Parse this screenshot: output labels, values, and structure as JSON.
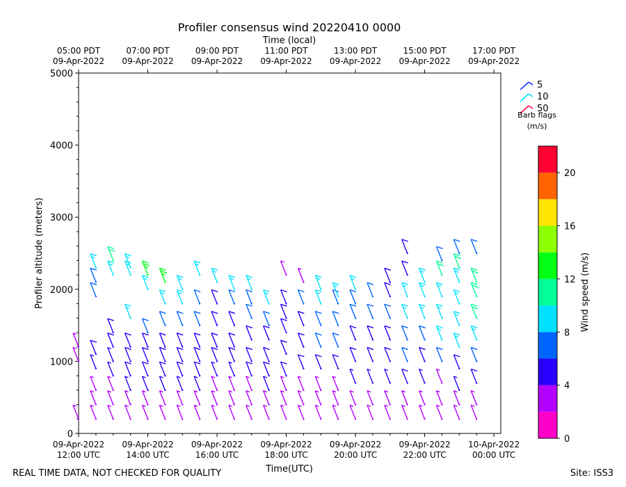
{
  "chart_data": {
    "type": "wind-barb profile",
    "title": "Profiler consensus wind 20220410 0000",
    "top_axis_label": "Time (local)",
    "xlabel": "Time(UTC)",
    "ylabel": "Profiler altitude (meters)",
    "ylim": [
      0,
      5000
    ],
    "y_ticks": [
      0,
      1000,
      2000,
      3000,
      4000,
      5000
    ],
    "xlim_hours_utc": [
      12.0,
      24.2
    ],
    "x_ticks_utc": [
      {
        "hour": 12,
        "line1": "09-Apr-2022",
        "line2": "12:00 UTC"
      },
      {
        "hour": 14,
        "line1": "09-Apr-2022",
        "line2": "14:00 UTC"
      },
      {
        "hour": 16,
        "line1": "09-Apr-2022",
        "line2": "16:00 UTC"
      },
      {
        "hour": 18,
        "line1": "09-Apr-2022",
        "line2": "18:00 UTC"
      },
      {
        "hour": 20,
        "line1": "09-Apr-2022",
        "line2": "20:00 UTC"
      },
      {
        "hour": 22,
        "line1": "09-Apr-2022",
        "line2": "22:00 UTC"
      },
      {
        "hour": 24,
        "line1": "10-Apr-2022",
        "line2": "00:00 UTC"
      }
    ],
    "x_ticks_local": [
      {
        "hour": 12,
        "line1": "05:00 PDT",
        "line2": "09-Apr-2022"
      },
      {
        "hour": 14,
        "line1": "07:00 PDT",
        "line2": "09-Apr-2022"
      },
      {
        "hour": 16,
        "line1": "09:00 PDT",
        "line2": "09-Apr-2022"
      },
      {
        "hour": 18,
        "line1": "11:00 PDT",
        "line2": "09-Apr-2022"
      },
      {
        "hour": 20,
        "line1": "13:00 PDT",
        "line2": "09-Apr-2022"
      },
      {
        "hour": 22,
        "line1": "15:00 PDT",
        "line2": "09-Apr-2022"
      },
      {
        "hour": 24,
        "line1": "17:00 PDT",
        "line2": "09-Apr-2022"
      }
    ],
    "legend": {
      "entries": [
        {
          "label": "5",
          "color": "#1a33ff"
        },
        {
          "label": "10",
          "color": "#00e5ff"
        },
        {
          "label": "50",
          "color": "#ff0040"
        }
      ],
      "title_line1": "Barb flags",
      "title_line2": "(m/s)"
    },
    "colorbar": {
      "label": "Wind speed (m/s)",
      "min": 0,
      "max": 22,
      "bins": [
        {
          "from": 0,
          "to": 2,
          "color": "#ff00c8"
        },
        {
          "from": 2,
          "to": 4,
          "color": "#b400ff"
        },
        {
          "from": 4,
          "to": 6,
          "color": "#2800ff"
        },
        {
          "from": 6,
          "to": 8,
          "color": "#0064ff"
        },
        {
          "from": 8,
          "to": 10,
          "color": "#00e1ff"
        },
        {
          "from": 10,
          "to": 12,
          "color": "#00ff96"
        },
        {
          "from": 12,
          "to": 14,
          "color": "#00ff14"
        },
        {
          "from": 14,
          "to": 16,
          "color": "#8cff00"
        },
        {
          "from": 16,
          "to": 18,
          "color": "#ffe600"
        },
        {
          "from": 18,
          "to": 20,
          "color": "#ff6400"
        },
        {
          "from": 20,
          "to": 22,
          "color": "#ff0032"
        }
      ],
      "ticks": [
        0,
        4,
        8,
        12,
        16,
        20
      ]
    },
    "profiles": [
      {
        "hour": 12.0,
        "levels": [
          [
            200,
            2
          ],
          [
            1000,
            3
          ],
          [
            1200,
            3
          ]
        ]
      },
      {
        "hour": 12.5,
        "levels": [
          [
            200,
            2
          ],
          [
            400,
            2
          ],
          [
            600,
            3
          ],
          [
            900,
            4
          ],
          [
            1100,
            5
          ],
          [
            1900,
            6
          ],
          [
            2100,
            6
          ],
          [
            2300,
            8
          ]
        ]
      },
      {
        "hour": 13.0,
        "levels": [
          [
            200,
            2
          ],
          [
            400,
            2
          ],
          [
            600,
            3
          ],
          [
            800,
            4
          ],
          [
            1000,
            4
          ],
          [
            1200,
            5
          ],
          [
            1400,
            5
          ],
          [
            2200,
            8
          ],
          [
            2400,
            10
          ]
        ]
      },
      {
        "hour": 13.5,
        "levels": [
          [
            200,
            2
          ],
          [
            400,
            2
          ],
          [
            600,
            4
          ],
          [
            800,
            5
          ],
          [
            1000,
            5
          ],
          [
            1200,
            5
          ],
          [
            1600,
            8
          ],
          [
            2200,
            8
          ],
          [
            2300,
            9
          ]
        ]
      },
      {
        "hour": 14.0,
        "levels": [
          [
            200,
            2
          ],
          [
            400,
            2
          ],
          [
            600,
            4
          ],
          [
            800,
            5
          ],
          [
            1000,
            5
          ],
          [
            1200,
            5
          ],
          [
            1400,
            6
          ],
          [
            2000,
            8
          ],
          [
            2200,
            12
          ]
        ]
      },
      {
        "hour": 14.5,
        "levels": [
          [
            200,
            2
          ],
          [
            400,
            2
          ],
          [
            600,
            4
          ],
          [
            800,
            5
          ],
          [
            1000,
            5
          ],
          [
            1200,
            5
          ],
          [
            1500,
            6
          ],
          [
            1800,
            8
          ],
          [
            2100,
            12
          ]
        ]
      },
      {
        "hour": 15.0,
        "levels": [
          [
            200,
            2
          ],
          [
            400,
            3
          ],
          [
            600,
            4
          ],
          [
            800,
            5
          ],
          [
            1000,
            5
          ],
          [
            1200,
            5
          ],
          [
            1500,
            6
          ],
          [
            1800,
            8
          ],
          [
            2000,
            8
          ]
        ]
      },
      {
        "hour": 15.5,
        "levels": [
          [
            200,
            2
          ],
          [
            400,
            3
          ],
          [
            600,
            4
          ],
          [
            800,
            5
          ],
          [
            1000,
            5
          ],
          [
            1200,
            5
          ],
          [
            1500,
            6
          ],
          [
            1800,
            6
          ],
          [
            2200,
            8
          ]
        ]
      },
      {
        "hour": 16.0,
        "levels": [
          [
            200,
            2
          ],
          [
            400,
            3
          ],
          [
            600,
            3
          ],
          [
            800,
            4
          ],
          [
            1000,
            5
          ],
          [
            1200,
            5
          ],
          [
            1500,
            5
          ],
          [
            1800,
            5
          ],
          [
            2100,
            8
          ]
        ]
      },
      {
        "hour": 16.5,
        "levels": [
          [
            200,
            2
          ],
          [
            400,
            2
          ],
          [
            600,
            3
          ],
          [
            800,
            4
          ],
          [
            1000,
            5
          ],
          [
            1200,
            5
          ],
          [
            1500,
            5
          ],
          [
            1800,
            6
          ],
          [
            2000,
            8
          ]
        ]
      },
      {
        "hour": 17.0,
        "levels": [
          [
            200,
            2
          ],
          [
            400,
            2
          ],
          [
            600,
            3
          ],
          [
            800,
            5
          ],
          [
            1000,
            5
          ],
          [
            1300,
            5
          ],
          [
            1600,
            6
          ],
          [
            1800,
            6
          ],
          [
            2000,
            8
          ]
        ]
      },
      {
        "hour": 17.5,
        "levels": [
          [
            200,
            2
          ],
          [
            400,
            2
          ],
          [
            600,
            4
          ],
          [
            800,
            5
          ],
          [
            1000,
            5
          ],
          [
            1300,
            5
          ],
          [
            1500,
            6
          ],
          [
            1800,
            8
          ]
        ]
      },
      {
        "hour": 18.0,
        "levels": [
          [
            200,
            2
          ],
          [
            400,
            2
          ],
          [
            600,
            3
          ],
          [
            800,
            5
          ],
          [
            1100,
            5
          ],
          [
            1400,
            5
          ],
          [
            1600,
            5
          ],
          [
            1800,
            5
          ],
          [
            2200,
            2
          ]
        ]
      },
      {
        "hour": 18.5,
        "levels": [
          [
            200,
            2
          ],
          [
            400,
            2
          ],
          [
            600,
            3
          ],
          [
            900,
            5
          ],
          [
            1200,
            5
          ],
          [
            1500,
            5
          ],
          [
            1800,
            6
          ],
          [
            2100,
            3
          ]
        ]
      },
      {
        "hour": 19.0,
        "levels": [
          [
            200,
            2
          ],
          [
            400,
            2
          ],
          [
            600,
            3
          ],
          [
            900,
            5
          ],
          [
            1200,
            6
          ],
          [
            1500,
            6
          ],
          [
            1800,
            8
          ],
          [
            2000,
            8
          ]
        ]
      },
      {
        "hour": 19.5,
        "levels": [
          [
            200,
            2
          ],
          [
            400,
            2
          ],
          [
            600,
            3
          ],
          [
            900,
            5
          ],
          [
            1200,
            6
          ],
          [
            1500,
            6
          ],
          [
            1800,
            6
          ],
          [
            1900,
            8
          ]
        ]
      },
      {
        "hour": 20.0,
        "levels": [
          [
            200,
            2
          ],
          [
            400,
            2
          ],
          [
            700,
            4
          ],
          [
            1000,
            5
          ],
          [
            1300,
            5
          ],
          [
            1600,
            6
          ],
          [
            1800,
            6
          ],
          [
            2000,
            8
          ]
        ]
      },
      {
        "hour": 20.5,
        "levels": [
          [
            200,
            2
          ],
          [
            400,
            2
          ],
          [
            700,
            4
          ],
          [
            1000,
            5
          ],
          [
            1300,
            5
          ],
          [
            1600,
            6
          ],
          [
            1900,
            6
          ]
        ]
      },
      {
        "hour": 21.0,
        "levels": [
          [
            200,
            2
          ],
          [
            400,
            2
          ],
          [
            700,
            4
          ],
          [
            1000,
            5
          ],
          [
            1300,
            5
          ],
          [
            1600,
            6
          ],
          [
            1900,
            5
          ],
          [
            2100,
            5
          ]
        ]
      },
      {
        "hour": 21.5,
        "levels": [
          [
            200,
            2
          ],
          [
            400,
            2
          ],
          [
            700,
            5
          ],
          [
            1000,
            6
          ],
          [
            1300,
            6
          ],
          [
            1600,
            8
          ],
          [
            1900,
            8
          ],
          [
            2200,
            5
          ],
          [
            2500,
            5
          ]
        ]
      },
      {
        "hour": 22.0,
        "levels": [
          [
            200,
            2
          ],
          [
            400,
            2
          ],
          [
            700,
            4
          ],
          [
            1000,
            5
          ],
          [
            1300,
            6
          ],
          [
            1600,
            8
          ],
          [
            1900,
            8
          ],
          [
            2100,
            8
          ]
        ]
      },
      {
        "hour": 22.5,
        "levels": [
          [
            200,
            2
          ],
          [
            400,
            2
          ],
          [
            700,
            3
          ],
          [
            1000,
            6
          ],
          [
            1300,
            8
          ],
          [
            1600,
            8
          ],
          [
            1900,
            8
          ],
          [
            2200,
            10
          ],
          [
            2400,
            6
          ]
        ]
      },
      {
        "hour": 23.0,
        "levels": [
          [
            200,
            2
          ],
          [
            400,
            2
          ],
          [
            600,
            4
          ],
          [
            900,
            5
          ],
          [
            1200,
            8
          ],
          [
            1500,
            8
          ],
          [
            1800,
            8
          ],
          [
            2100,
            8
          ],
          [
            2300,
            10
          ],
          [
            2500,
            6
          ]
        ]
      },
      {
        "hour": 23.5,
        "levels": [
          [
            200,
            2
          ],
          [
            400,
            3
          ],
          [
            700,
            5
          ],
          [
            1000,
            6
          ],
          [
            1300,
            8
          ],
          [
            1600,
            10
          ],
          [
            1900,
            10
          ],
          [
            2100,
            10
          ],
          [
            2500,
            6
          ]
        ]
      }
    ]
  },
  "footer": {
    "left_note": "REAL TIME DATA, NOT CHECKED FOR QUALITY",
    "right_note": "Site: ISS3"
  }
}
